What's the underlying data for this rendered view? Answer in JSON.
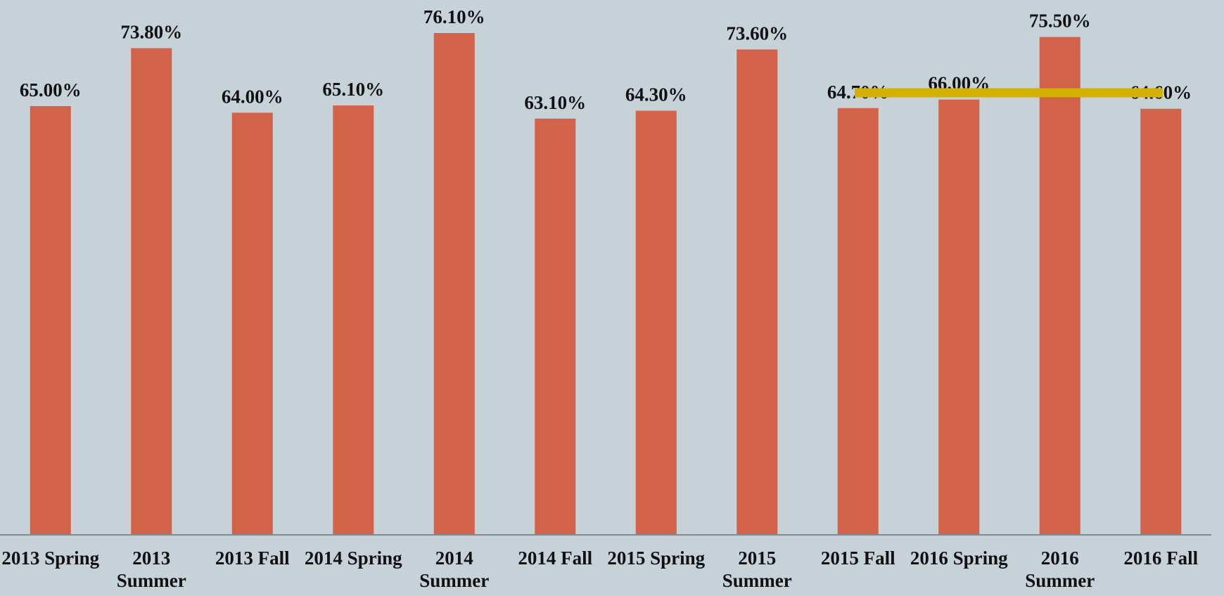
{
  "chart_data": {
    "type": "bar",
    "categories": [
      "2013 Spring",
      "2013 Summer",
      "2013 Fall",
      "2014 Spring",
      "2014 Summer",
      "2014 Fall",
      "2015 Spring",
      "2015 Summer",
      "2015 Fall",
      "2016 Spring",
      "2016 Summer",
      "2016 Fall"
    ],
    "values": [
      65.0,
      73.8,
      64.0,
      65.1,
      76.1,
      63.1,
      64.3,
      73.6,
      64.7,
      66.0,
      75.5,
      64.6
    ],
    "value_labels": [
      "65.00%",
      "73.80%",
      "64.00%",
      "65.10%",
      "76.10%",
      "63.10%",
      "64.30%",
      "73.60%",
      "64.70%",
      "66.00%",
      "75.50%",
      "64.60%"
    ],
    "color": "#d2634a"
  }
}
